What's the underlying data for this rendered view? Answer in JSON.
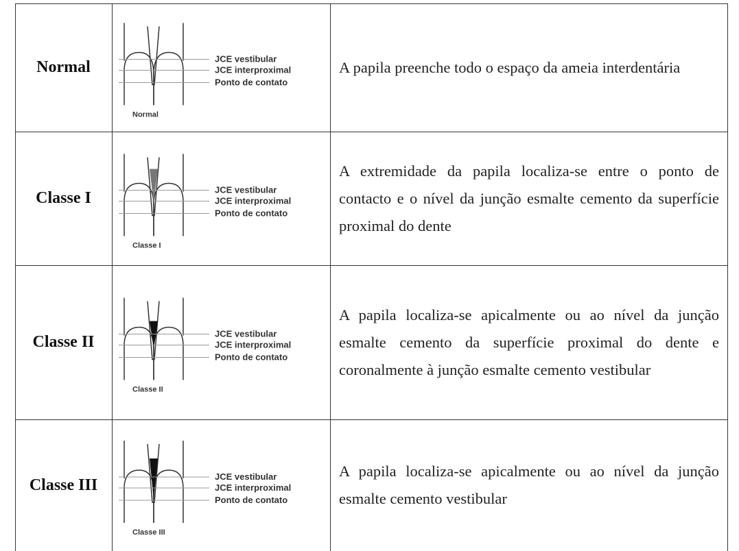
{
  "table": {
    "rows": [
      {
        "class": "Normal",
        "figure": {
          "labels": [
            "JCE vestibular",
            "JCE interproximal",
            "Ponto de contato"
          ],
          "caption": "Normal"
        },
        "description": "A papila preenche todo o espaço da ameia interdentária"
      },
      {
        "class": "Classe I",
        "figure": {
          "labels": [
            "JCE vestibular",
            "JCE interproximal",
            "Ponto de contato"
          ],
          "caption": "Classe I"
        },
        "description": "A extremidade da papila localiza-se entre o ponto de contacto e o nível da junção esmalte cemento da superfície proximal do dente"
      },
      {
        "class": "Classe II",
        "figure": {
          "labels": [
            "JCE vestibular",
            "JCE interproximal",
            "Ponto de contato"
          ],
          "caption": "Classe II"
        },
        "description": "A papila localiza-se apicalmente ou ao nível da junção esmalte cemento da superfície proximal do dente e coronalmente à junção esmalte cemento vestibular"
      },
      {
        "class": "Classe III",
        "figure": {
          "labels": [
            "JCE vestibular",
            "JCE interproximal",
            "Ponto de contato"
          ],
          "caption": "Classe III"
        },
        "description": "A papila localiza-se apicalmente ou ao nível da junção esmalte cemento vestibular"
      }
    ]
  }
}
